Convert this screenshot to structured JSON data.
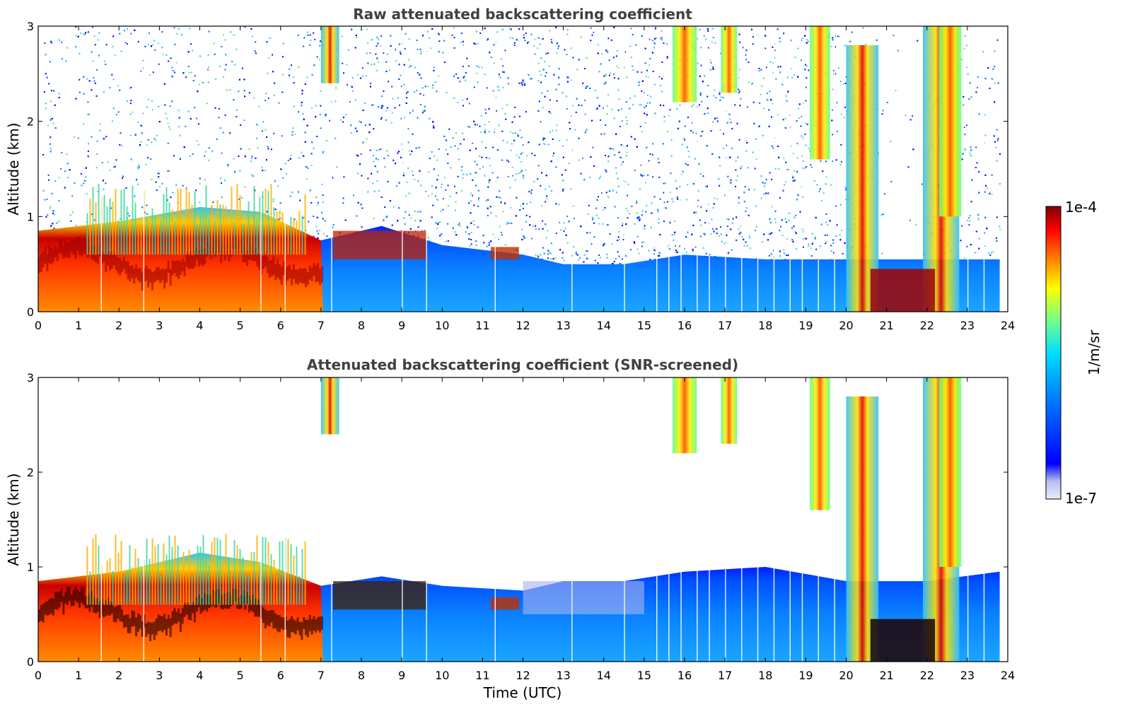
{
  "chart_data": [
    {
      "type": "heatmap",
      "title": "Raw attenuated backscattering coefficient",
      "xlabel": "",
      "ylabel": "Altitude (km)",
      "xlim": [
        0,
        24
      ],
      "ylim": [
        0,
        3
      ],
      "xticks": [
        "0",
        "1",
        "2",
        "3",
        "4",
        "5",
        "6",
        "7",
        "8",
        "9",
        "10",
        "11",
        "12",
        "13",
        "14",
        "15",
        "16",
        "17",
        "18",
        "19",
        "20",
        "21",
        "22",
        "23",
        "24"
      ],
      "yticks": [
        "0",
        "1",
        "2",
        "3"
      ],
      "screened": false,
      "boundary_layer_top_km": [
        {
          "time": 0,
          "top": 0.85
        },
        {
          "time": 2,
          "top": 0.95
        },
        {
          "time": 4,
          "top": 1.1
        },
        {
          "time": 5.5,
          "top": 1.05
        },
        {
          "time": 7,
          "top": 0.75
        },
        {
          "time": 8.5,
          "top": 0.9
        },
        {
          "time": 10,
          "top": 0.7
        },
        {
          "time": 12,
          "top": 0.6
        },
        {
          "time": 13,
          "top": 0.5
        },
        {
          "time": 14.5,
          "top": 0.5
        },
        {
          "time": 16,
          "top": 0.6
        },
        {
          "time": 18,
          "top": 0.55
        },
        {
          "time": 20,
          "top": 0.55
        },
        {
          "time": 22,
          "top": 0.55
        },
        {
          "time": 23.8,
          "top": 0.55
        }
      ]
    },
    {
      "type": "heatmap",
      "title": "Attenuated backscattering coefficient (SNR-screened)",
      "xlabel": "Time (UTC)",
      "ylabel": "Altitude (km)",
      "xlim": [
        0,
        24
      ],
      "ylim": [
        0,
        3
      ],
      "xticks": [
        "0",
        "1",
        "2",
        "3",
        "4",
        "5",
        "6",
        "7",
        "8",
        "9",
        "10",
        "11",
        "12",
        "13",
        "14",
        "15",
        "16",
        "17",
        "18",
        "19",
        "20",
        "21",
        "22",
        "23",
        "24"
      ],
      "yticks": [
        "0",
        "1",
        "2",
        "3"
      ],
      "screened": true,
      "boundary_layer_top_km": [
        {
          "time": 0,
          "top": 0.85
        },
        {
          "time": 2,
          "top": 0.95
        },
        {
          "time": 4,
          "top": 1.15
        },
        {
          "time": 5.5,
          "top": 1.05
        },
        {
          "time": 7,
          "top": 0.8
        },
        {
          "time": 8.5,
          "top": 0.9
        },
        {
          "time": 10,
          "top": 0.8
        },
        {
          "time": 12,
          "top": 0.75
        },
        {
          "time": 13,
          "top": 0.85
        },
        {
          "time": 14.5,
          "top": 0.85
        },
        {
          "time": 16,
          "top": 0.95
        },
        {
          "time": 18,
          "top": 1.0
        },
        {
          "time": 20,
          "top": 0.85
        },
        {
          "time": 22,
          "top": 0.85
        },
        {
          "time": 23.8,
          "top": 0.95
        }
      ]
    }
  ],
  "colorbar": {
    "max_label": "1e-4",
    "min_label": "1e-7",
    "unit_label": "1/m/sr",
    "colors": [
      "#e8ecf8",
      "#b8c0f0",
      "#0000ff",
      "#0080ff",
      "#00e0ff",
      "#80ff80",
      "#ffff00",
      "#ff8000",
      "#ff0000",
      "#800000"
    ]
  }
}
